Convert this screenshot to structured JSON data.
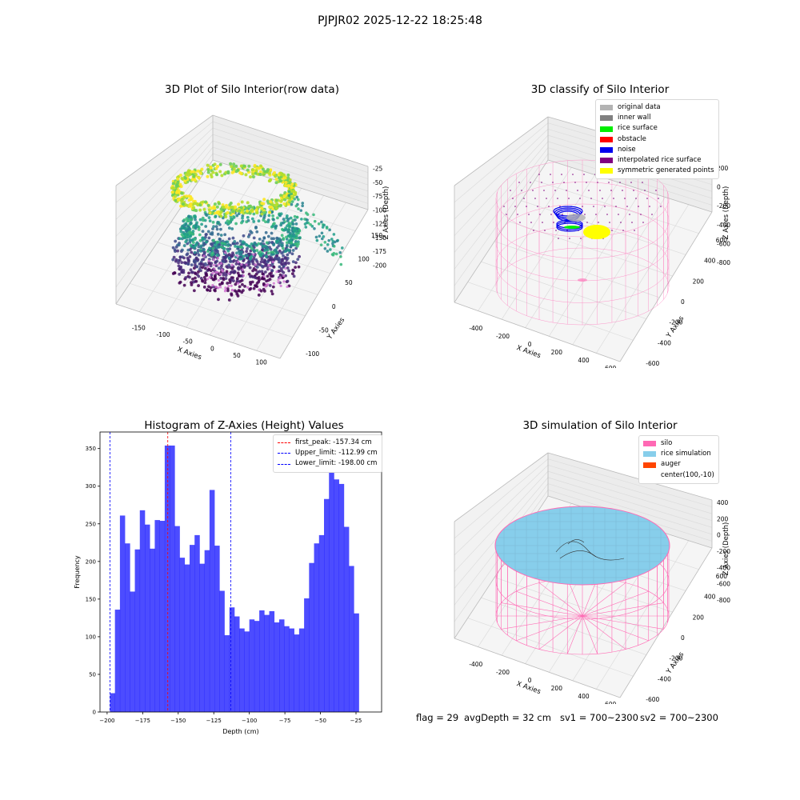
{
  "suptitle": "PJPJR02 2025-12-22 18:25:48",
  "panels": {
    "raw": {
      "title": "3D Plot of Silo Interior(row data)",
      "xlabel": "X Axies",
      "ylabel": "Y Axies",
      "zlabel": "Z Axies (Depth)",
      "xticks": [
        "-150",
        "-100",
        "-50",
        "0",
        "50",
        "100"
      ],
      "yticks": [
        "-100",
        "-50",
        "0",
        "50",
        "100",
        "150"
      ],
      "zticks": [
        "-25",
        "-50",
        "-75",
        "-100",
        "-125",
        "-150",
        "-175",
        "-200"
      ]
    },
    "classify": {
      "title": "3D classify of Silo Interior",
      "xlabel": "X Axies",
      "ylabel": "Y Axies",
      "zlabel": "Z Axies (Depth)",
      "xticks": [
        "-400",
        "-200",
        "0",
        "200",
        "400",
        "600"
      ],
      "yticks": [
        "-600",
        "-400",
        "-200",
        "0",
        "200",
        "400",
        "600"
      ],
      "zticks": [
        "200",
        "0",
        "-200",
        "-400",
        "-600",
        "-800"
      ],
      "zticks_partial": "00",
      "legend": [
        {
          "label": "original data",
          "color": "#b3b3b3"
        },
        {
          "label": "inner wall",
          "color": "#808080"
        },
        {
          "label": "rice surface",
          "color": "#00ee00"
        },
        {
          "label": "obstacle",
          "color": "#ff0000"
        },
        {
          "label": "noise",
          "color": "#0000ee"
        },
        {
          "label": "interpolated rice surface",
          "color": "#800080"
        },
        {
          "label": "symmetric generated points",
          "color": "#ffff00"
        }
      ]
    },
    "histogram": {
      "title": "Histogram of Z-Axies (Height) Values",
      "xlabel": "Depth (cm)",
      "ylabel": "Frequency",
      "legend": [
        {
          "label": "first_peak: -157.34 cm",
          "color": "#ff0000"
        },
        {
          "label": "Upper_limit: -112.99 cm",
          "color": "#0000ff"
        },
        {
          "label": "Lower_limit: -198.00 cm",
          "color": "#0000ff"
        }
      ]
    },
    "simulation": {
      "title": "3D simulation of Silo Interior",
      "xlabel": "X Axies",
      "ylabel": "Y Axies",
      "zlabel": "Z Axies (Depth)",
      "xticks": [
        "-400",
        "-200",
        "0",
        "200",
        "400",
        "600"
      ],
      "yticks": [
        "-600",
        "-400",
        "-200",
        "0",
        "200",
        "400",
        "600"
      ],
      "zticks": [
        "400",
        "200",
        "0",
        "-200",
        "-400",
        "-600",
        "-800"
      ],
      "legend": [
        {
          "label": "silo",
          "color": "#ff69b4"
        },
        {
          "label": "rice simulation",
          "color": "#87ceeb"
        },
        {
          "label": "auger",
          "color": "#ff4500"
        },
        {
          "label": "center(100,-10)",
          "color": ""
        }
      ]
    }
  },
  "footer": {
    "flag": "flag = 29",
    "avg_depth": "avgDepth = 32 cm",
    "sv1": "sv1 = 700~2300",
    "sv2": "sv2 = 700~2300"
  },
  "chart_data": {
    "type": "bar",
    "title": "Histogram of Z-Axies (Height) Values",
    "xlabel": "Depth (cm)",
    "ylabel": "Frequency",
    "xlim": [
      -205,
      -7
    ],
    "ylim": [
      0,
      372
    ],
    "xticks": [
      -200,
      -175,
      -150,
      -125,
      -100,
      -75,
      -50,
      -25
    ],
    "yticks": [
      0,
      50,
      100,
      150,
      200,
      250,
      300,
      350
    ],
    "bin_start": -198.0,
    "bin_width": 3.5,
    "values": [
      25,
      136,
      261,
      224,
      160,
      216,
      268,
      249,
      217,
      255,
      254,
      354,
      354,
      247,
      205,
      196,
      222,
      235,
      197,
      215,
      295,
      221,
      161,
      102,
      139,
      127,
      111,
      107,
      123,
      121,
      135,
      129,
      134,
      119,
      123,
      114,
      111,
      103,
      111,
      151,
      198,
      224,
      235,
      283,
      319,
      309,
      303,
      246,
      194,
      131
    ],
    "color": "#0000ff",
    "alpha": 0.7,
    "vlines": [
      {
        "x": -157.34,
        "color": "#ff0000",
        "label": "first_peak: -157.34 cm"
      },
      {
        "x": -112.99,
        "color": "#0000ff",
        "label": "Upper_limit: -112.99 cm"
      },
      {
        "x": -198.0,
        "color": "#0000ff",
        "label": "Lower_limit: -198.00 cm"
      }
    ],
    "legend_position": "top-right"
  }
}
